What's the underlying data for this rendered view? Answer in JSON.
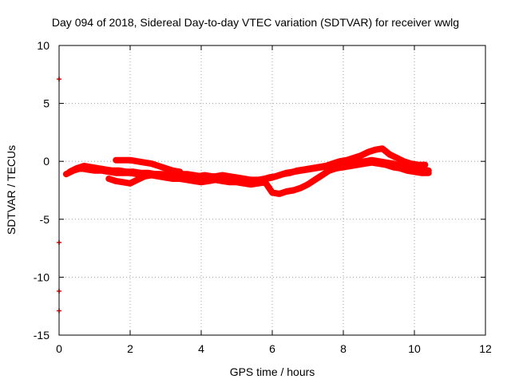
{
  "chart_data": {
    "type": "scatter",
    "title": "Day 094 of 2018, Sidereal Day-to-day VTEC variation (SDTVAR) for receiver wwlg",
    "xlabel": "GPS time / hours",
    "ylabel": "SDTVAR / TECUs",
    "xlim": [
      0,
      12
    ],
    "ylim": [
      -15,
      10
    ],
    "x_ticks": [
      0,
      2,
      4,
      6,
      8,
      10,
      12
    ],
    "y_ticks": [
      -15,
      -10,
      -5,
      0,
      5,
      10
    ],
    "x_tick_labels": [
      "0",
      "2",
      "4",
      "6",
      "8",
      "10",
      "12"
    ],
    "y_tick_labels": [
      "-15",
      "-10",
      "-5",
      "0",
      "5",
      "10"
    ],
    "grid": true,
    "legend": "none",
    "series_color": "#ff0000",
    "marker": "plus",
    "series": [
      {
        "name": "track-a",
        "x": [
          0.2,
          0.4,
          0.6,
          0.8,
          1.0,
          1.2,
          1.4,
          1.6,
          1.8,
          2.0,
          2.2,
          2.4,
          2.6,
          2.8,
          3.0,
          3.2,
          3.4,
          3.6,
          3.8,
          4.0,
          4.2,
          4.4,
          4.6,
          4.8,
          5.0,
          5.2,
          5.4,
          5.6,
          5.8,
          6.0,
          6.2,
          6.4,
          6.6,
          6.8,
          7.0,
          7.2,
          7.4,
          7.6,
          7.8,
          8.0,
          8.2,
          8.4,
          8.6,
          8.8,
          9.0,
          9.2,
          9.4,
          9.6,
          9.8,
          10.0,
          10.2,
          10.4
        ],
        "y": [
          -1.1,
          -0.8,
          -0.6,
          -0.7,
          -0.8,
          -0.8,
          -0.9,
          -1.0,
          -1.0,
          -1.0,
          -1.1,
          -1.1,
          -1.1,
          -1.1,
          -1.2,
          -1.2,
          -1.1,
          -1.1,
          -1.2,
          -1.3,
          -1.3,
          -1.3,
          -1.2,
          -1.3,
          -1.4,
          -1.5,
          -1.6,
          -1.6,
          -1.5,
          -1.4,
          -1.2,
          -1.0,
          -0.9,
          -0.8,
          -0.7,
          -0.6,
          -0.5,
          -0.4,
          -0.3,
          -0.3,
          -0.2,
          -0.1,
          0.0,
          0.1,
          0.0,
          -0.1,
          -0.2,
          -0.4,
          -0.5,
          -0.6,
          -0.7,
          -0.8
        ]
      },
      {
        "name": "track-b",
        "x": [
          0.3,
          0.5,
          0.7,
          0.9,
          1.1,
          1.3,
          1.5,
          1.7,
          1.9,
          2.1,
          2.3,
          2.5,
          2.7,
          2.9,
          3.1,
          3.3,
          3.5,
          3.7,
          3.9,
          4.1,
          4.3,
          4.5,
          4.7,
          4.9,
          5.1,
          5.3,
          5.5,
          5.7,
          5.9,
          6.1,
          6.3,
          6.5,
          6.7,
          6.9,
          7.1,
          7.3,
          7.5,
          7.7,
          7.9,
          8.1,
          8.3,
          8.5,
          8.7,
          8.9,
          9.1,
          9.3,
          9.5,
          9.7,
          9.9,
          10.1,
          10.3
        ],
        "y": [
          -0.9,
          -0.6,
          -0.4,
          -0.5,
          -0.6,
          -0.7,
          -0.8,
          -0.8,
          -0.9,
          -0.9,
          -1.0,
          -1.0,
          -1.1,
          -1.1,
          -1.1,
          -1.2,
          -1.2,
          -1.3,
          -1.3,
          -1.2,
          -1.3,
          -1.4,
          -1.5,
          -1.5,
          -1.6,
          -1.7,
          -1.7,
          -1.6,
          -1.4,
          -1.3,
          -1.1,
          -1.0,
          -0.8,
          -0.7,
          -0.6,
          -0.5,
          -0.4,
          -0.2,
          0.0,
          0.1,
          0.3,
          0.5,
          0.8,
          1.0,
          1.1,
          0.6,
          0.3,
          0.0,
          -0.2,
          -0.3,
          -0.3
        ]
      },
      {
        "name": "track-c",
        "x": [
          1.4,
          1.6,
          1.8,
          2.0,
          2.2,
          2.4,
          2.6,
          2.8,
          3.0,
          3.2,
          3.4,
          3.6,
          3.8,
          4.0,
          4.2,
          4.4,
          4.6,
          4.8,
          5.0,
          5.2,
          5.4,
          5.6,
          5.8,
          6.0,
          6.2,
          6.4,
          6.6,
          6.8,
          7.0,
          7.2,
          7.4,
          7.6,
          7.8,
          8.0,
          8.2,
          8.4,
          8.6,
          8.8,
          9.0,
          9.2,
          9.4,
          9.6,
          9.8,
          10.0,
          10.2,
          10.4
        ],
        "y": [
          -1.5,
          -1.7,
          -1.8,
          -1.9,
          -1.6,
          -1.3,
          -1.2,
          -1.3,
          -1.4,
          -1.5,
          -1.5,
          -1.6,
          -1.7,
          -1.8,
          -1.7,
          -1.6,
          -1.7,
          -1.8,
          -1.8,
          -1.9,
          -2.0,
          -1.9,
          -1.8,
          -2.7,
          -2.8,
          -2.6,
          -2.5,
          -2.3,
          -2.0,
          -1.6,
          -1.2,
          -0.8,
          -0.6,
          -0.5,
          -0.4,
          -0.3,
          -0.2,
          -0.1,
          -0.2,
          -0.3,
          -0.5,
          -0.6,
          -0.8,
          -0.9,
          -1.0,
          -1.0
        ]
      },
      {
        "name": "track-d",
        "x": [
          1.6,
          1.8,
          2.0,
          2.2,
          2.4,
          2.6,
          2.8,
          3.0,
          3.2,
          3.4
        ],
        "y": [
          0.1,
          0.1,
          0.1,
          0.0,
          -0.1,
          -0.2,
          -0.4,
          -0.6,
          -0.8,
          -0.9
        ]
      },
      {
        "name": "outliers",
        "x": [
          0.0,
          0.0,
          0.0,
          0.0
        ],
        "y": [
          7.1,
          -7.0,
          -11.2,
          -12.9
        ]
      }
    ]
  }
}
